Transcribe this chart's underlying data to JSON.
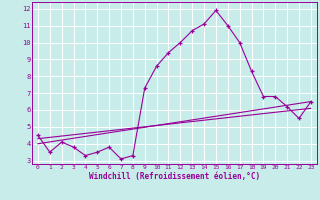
{
  "xlabel": "Windchill (Refroidissement éolien,°C)",
  "background_color": "#c8ecea",
  "grid_color": "#ffffff",
  "line_color": "#990099",
  "xlim": [
    -0.5,
    23.5
  ],
  "ylim": [
    2.8,
    12.4
  ],
  "xticks": [
    0,
    1,
    2,
    3,
    4,
    5,
    6,
    7,
    8,
    9,
    10,
    11,
    12,
    13,
    14,
    15,
    16,
    17,
    18,
    19,
    20,
    21,
    22,
    23
  ],
  "yticks": [
    3,
    4,
    5,
    6,
    7,
    8,
    9,
    10,
    11,
    12
  ],
  "main_x": [
    0,
    1,
    2,
    3,
    4,
    5,
    6,
    7,
    8,
    9,
    10,
    11,
    12,
    13,
    14,
    15,
    16,
    17,
    18,
    19,
    20,
    21,
    22,
    23
  ],
  "main_y": [
    4.5,
    3.5,
    4.1,
    3.8,
    3.3,
    3.5,
    3.8,
    3.1,
    3.3,
    7.3,
    8.6,
    9.4,
    10.0,
    10.7,
    11.1,
    11.9,
    11.0,
    10.0,
    8.3,
    6.8,
    6.8,
    6.2,
    5.5,
    6.5
  ],
  "line1_x": [
    0,
    23
  ],
  "line1_y": [
    4.3,
    6.1
  ],
  "line2_x": [
    0,
    23
  ],
  "line2_y": [
    4.0,
    6.5
  ]
}
